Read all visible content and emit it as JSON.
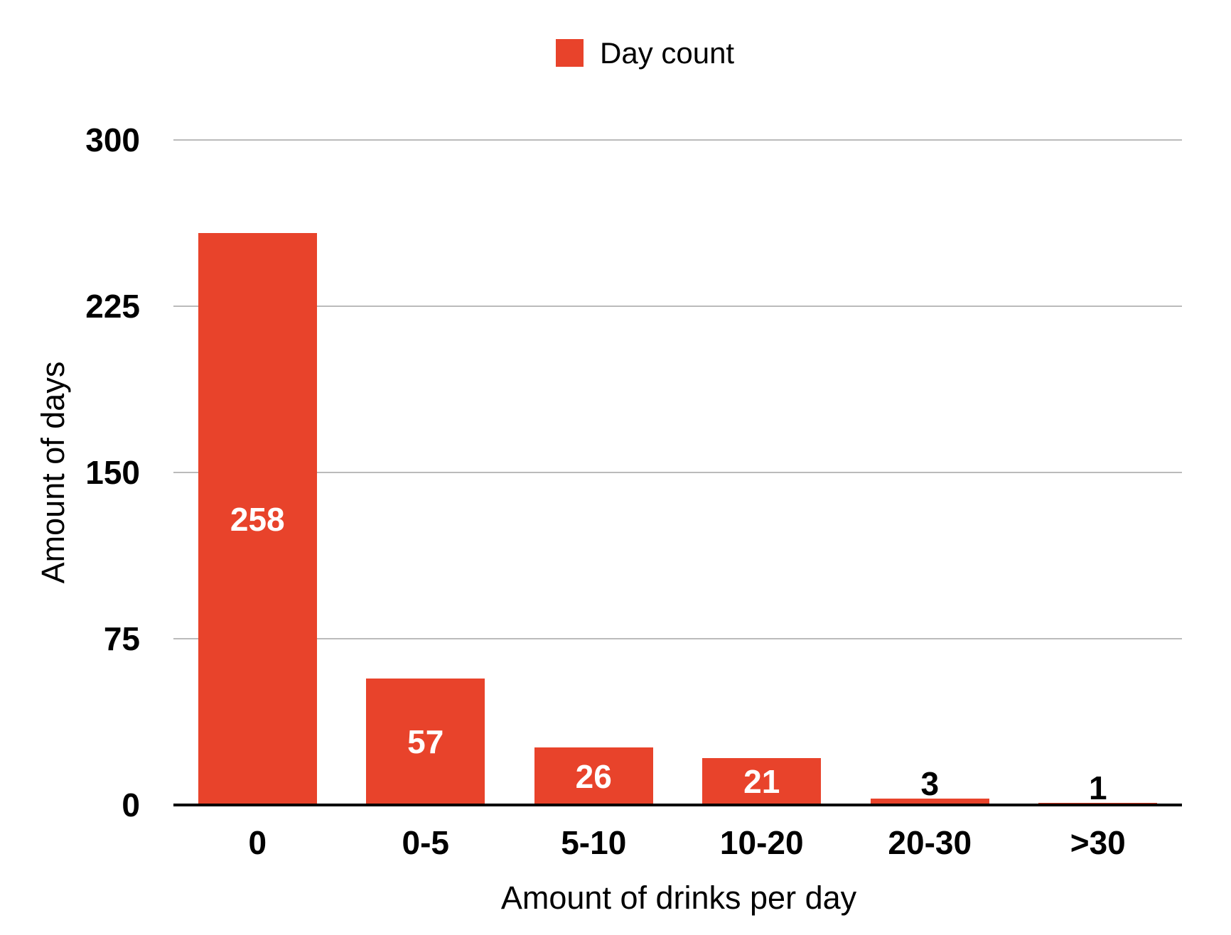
{
  "colors": {
    "bar": "#E8432B",
    "grid": "#BBBBBB",
    "axis": "#000000",
    "value_label_inside": "#FFFFFF",
    "value_label_outside": "#000000",
    "background": "#FFFFFF"
  },
  "legend": {
    "label": "Day count"
  },
  "chart_data": {
    "type": "bar",
    "title": "",
    "series_name": "Day count",
    "categories": [
      "0",
      "0-5",
      "5-10",
      "10-20",
      "20-30",
      ">30"
    ],
    "values": [
      258,
      57,
      26,
      21,
      3,
      1
    ],
    "xlabel": "Amount of drinks per day",
    "ylabel": "Amount of days",
    "ylim": [
      0,
      300
    ],
    "yticks": [
      0,
      75,
      150,
      225,
      300
    ],
    "grid": true,
    "legend_position": "top-center",
    "bar_value_labels": true
  }
}
